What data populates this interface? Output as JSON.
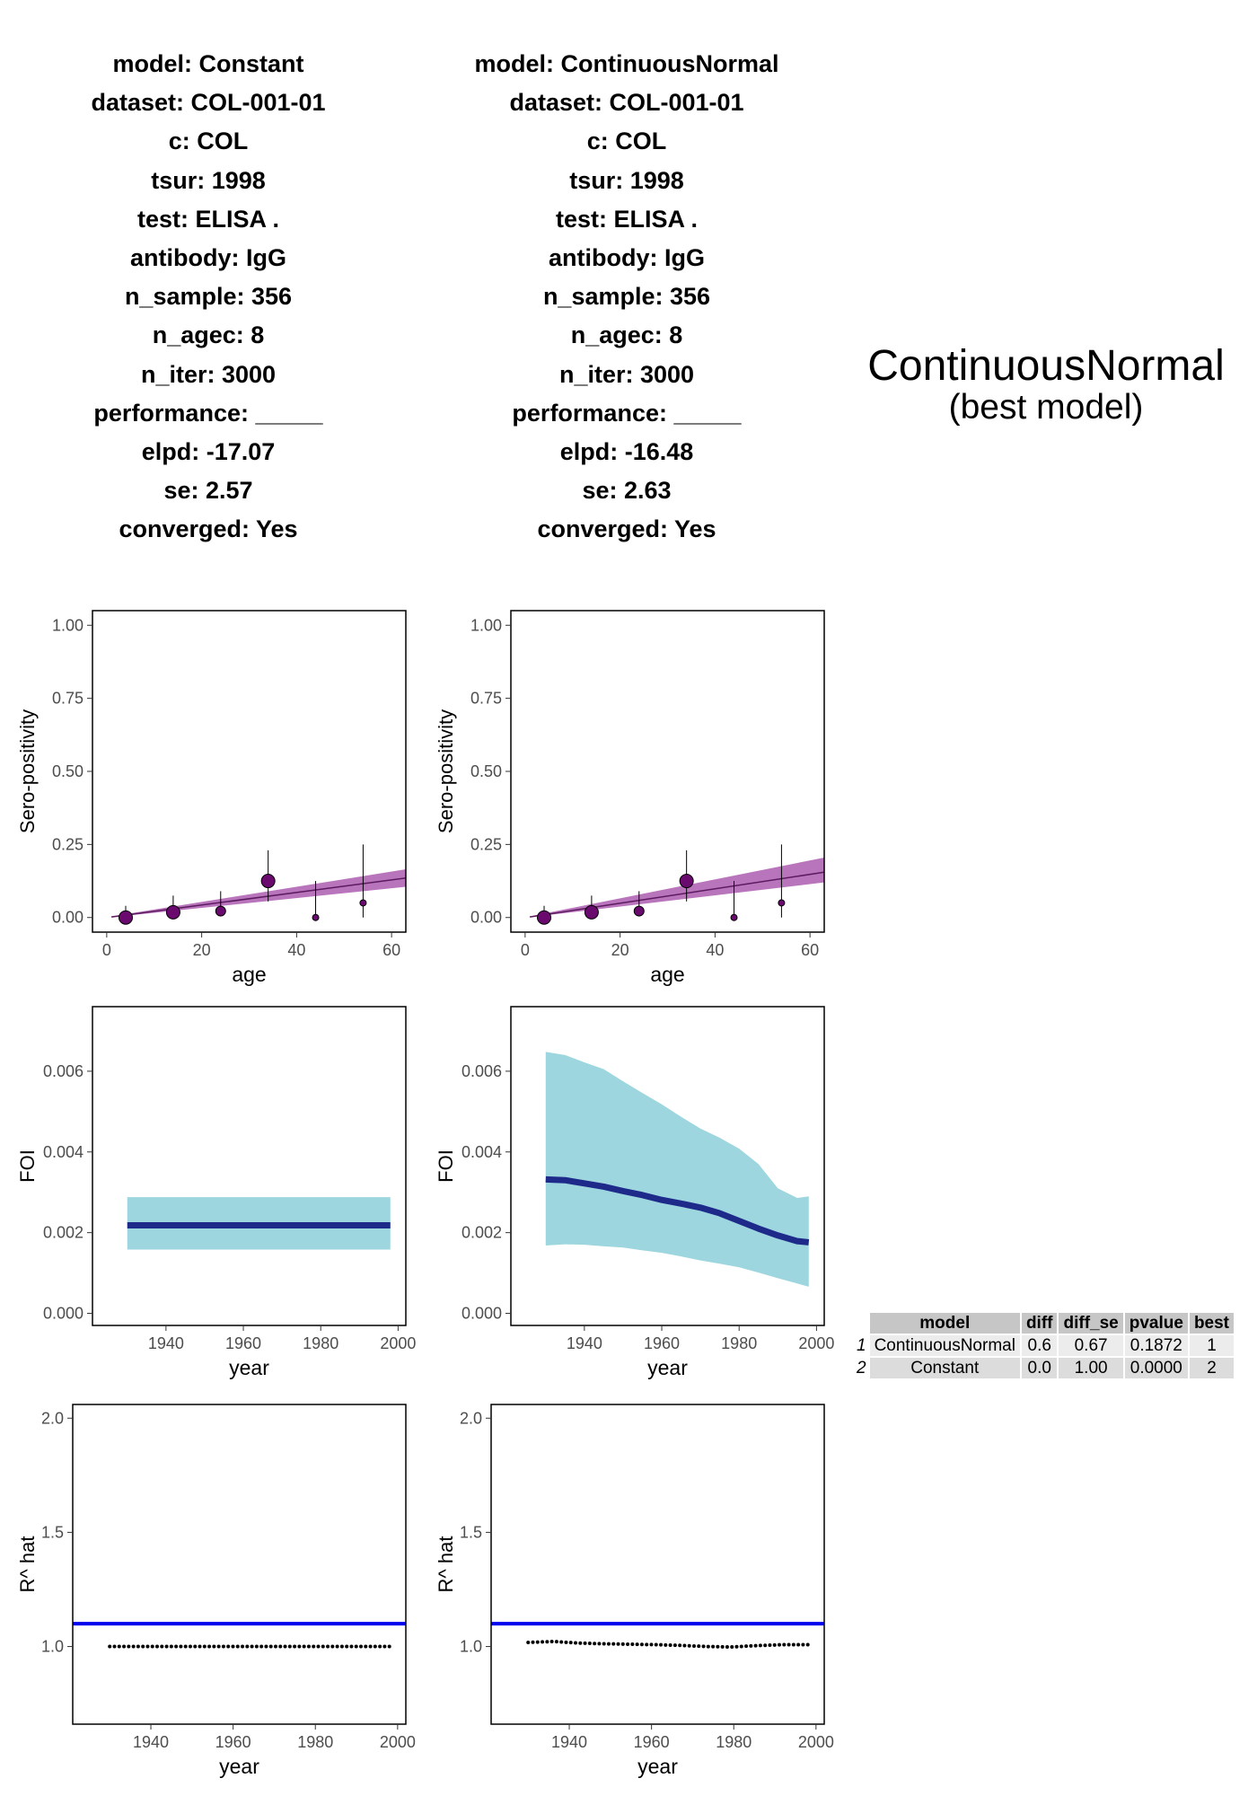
{
  "panels": [
    {
      "info": [
        "model: Constant",
        "dataset: COL-001-01",
        "c: COL",
        "tsur: 1998",
        "test: ELISA .",
        "antibody: IgG",
        "n_sample: 356",
        "n_agec: 8",
        "n_iter: 3000",
        "performance: _____",
        "elpd: -17.07",
        "se: 2.57",
        "converged: Yes"
      ]
    },
    {
      "info": [
        "model: ContinuousNormal",
        "dataset: COL-001-01",
        "c: COL",
        "tsur: 1998",
        "test: ELISA .",
        "antibody: IgG",
        "n_sample: 356",
        "n_agec: 8",
        "n_iter: 3000",
        "performance: _____",
        "elpd: -16.48",
        "se: 2.63",
        "converged: Yes"
      ]
    }
  ],
  "best_model": {
    "name": "ContinuousNormal",
    "label": "(best model)"
  },
  "colors": {
    "sero_band": "#ad5db0",
    "sero_line": "#5c1a5f",
    "sero_point": "#6a0a6e",
    "foi_band": "#9dd6de",
    "foi_line": "#1e2a8a",
    "rhat_ref": "#0000ee",
    "rhat_point": "#000000"
  },
  "comparison_table": {
    "headers": [
      "model",
      "diff",
      "diff_se",
      "pvalue",
      "best"
    ],
    "rows": [
      {
        "index": "1",
        "cells": [
          "ContinuousNormal",
          "0.6",
          "0.67",
          "0.1872",
          "1"
        ]
      },
      {
        "index": "2",
        "cells": [
          "Constant",
          "0.0",
          "1.00",
          "0.0000",
          "2"
        ]
      }
    ]
  },
  "chart_data": [
    {
      "type": "scatter",
      "model": "Constant",
      "xlabel": "age",
      "ylabel": "Sero-positivity",
      "xlim": [
        -3,
        63
      ],
      "ylim": [
        -0.05,
        1.05
      ],
      "xticks": [
        "0",
        "20",
        "40",
        "60"
      ],
      "yticks": [
        "0.00",
        "0.25",
        "0.50",
        "0.75",
        "1.00"
      ],
      "points": [
        {
          "x": 4,
          "y": 0.0,
          "lo": 0.0,
          "hi": 0.04,
          "size": "large"
        },
        {
          "x": 14,
          "y": 0.018,
          "lo": 0.003,
          "hi": 0.075,
          "size": "large"
        },
        {
          "x": 24,
          "y": 0.022,
          "lo": 0.004,
          "hi": 0.09,
          "size": "medium"
        },
        {
          "x": 34,
          "y": 0.125,
          "lo": 0.055,
          "hi": 0.23,
          "size": "large"
        },
        {
          "x": 44,
          "y": 0.0,
          "lo": 0.0,
          "hi": 0.125,
          "size": "small"
        },
        {
          "x": 54,
          "y": 0.05,
          "lo": 0.0,
          "hi": 0.25,
          "size": "small"
        }
      ],
      "fit": {
        "x": [
          1,
          63
        ],
        "mid": [
          0.002,
          0.135
        ],
        "lo": [
          0.001,
          0.105
        ],
        "hi": [
          0.004,
          0.165
        ]
      }
    },
    {
      "type": "scatter",
      "model": "ContinuousNormal",
      "xlabel": "age",
      "ylabel": "Sero-positivity",
      "xlim": [
        -3,
        63
      ],
      "ylim": [
        -0.05,
        1.05
      ],
      "xticks": [
        "0",
        "20",
        "40",
        "60"
      ],
      "yticks": [
        "0.00",
        "0.25",
        "0.50",
        "0.75",
        "1.00"
      ],
      "points": [
        {
          "x": 4,
          "y": 0.0,
          "lo": 0.0,
          "hi": 0.04,
          "size": "large"
        },
        {
          "x": 14,
          "y": 0.018,
          "lo": 0.003,
          "hi": 0.075,
          "size": "large"
        },
        {
          "x": 24,
          "y": 0.022,
          "lo": 0.004,
          "hi": 0.09,
          "size": "medium"
        },
        {
          "x": 34,
          "y": 0.125,
          "lo": 0.055,
          "hi": 0.23,
          "size": "large"
        },
        {
          "x": 44,
          "y": 0.0,
          "lo": 0.0,
          "hi": 0.125,
          "size": "small"
        },
        {
          "x": 54,
          "y": 0.05,
          "lo": 0.0,
          "hi": 0.25,
          "size": "small"
        }
      ],
      "fit": {
        "x": [
          1,
          63
        ],
        "mid": [
          0.002,
          0.155
        ],
        "lo": [
          0.001,
          0.12
        ],
        "hi": [
          0.004,
          0.205
        ]
      }
    },
    {
      "type": "area",
      "model": "Constant",
      "xlabel": "year",
      "ylabel": "FOI",
      "xlim": [
        1921,
        2002
      ],
      "ylim": [
        -0.0003,
        0.0076
      ],
      "xticks": [
        "1940",
        "1960",
        "1980",
        "2000"
      ],
      "yticks": [
        "0.000",
        "0.002",
        "0.004",
        "0.006"
      ],
      "x": [
        1930,
        1998
      ],
      "mid": [
        0.00218,
        0.00218
      ],
      "lo": [
        0.00158,
        0.00158
      ],
      "hi": [
        0.00288,
        0.00288
      ]
    },
    {
      "type": "area",
      "model": "ContinuousNormal",
      "xlabel": "year",
      "ylabel": "FOI",
      "xlim": [
        1921,
        2002
      ],
      "ylim": [
        -0.0003,
        0.0076
      ],
      "xticks": [
        "1940",
        "1960",
        "1980",
        "2000"
      ],
      "yticks": [
        "0.000",
        "0.002",
        "0.004",
        "0.006"
      ],
      "x": [
        1930,
        1935,
        1940,
        1945,
        1950,
        1955,
        1960,
        1965,
        1970,
        1975,
        1980,
        1985,
        1990,
        1995,
        1998
      ],
      "mid": [
        0.00332,
        0.0033,
        0.00322,
        0.00314,
        0.00303,
        0.00293,
        0.00281,
        0.00272,
        0.00262,
        0.00248,
        0.00229,
        0.0021,
        0.00193,
        0.00179,
        0.00176
      ],
      "lo": [
        0.00168,
        0.00171,
        0.0017,
        0.00166,
        0.00163,
        0.00156,
        0.0015,
        0.00141,
        0.00131,
        0.00123,
        0.00114,
        0.00101,
        0.00087,
        0.00074,
        0.00066
      ],
      "hi": [
        0.00648,
        0.0064,
        0.00622,
        0.00605,
        0.00575,
        0.00546,
        0.00518,
        0.00487,
        0.00458,
        0.00435,
        0.00408,
        0.0037,
        0.0031,
        0.00286,
        0.0029
      ]
    },
    {
      "type": "scatter",
      "model": "Constant",
      "xlabel": "year",
      "ylabel": "R^ hat",
      "xlim": [
        1921,
        2002
      ],
      "ylim": [
        0.66,
        2.06
      ],
      "xticks": [
        "1940",
        "1960",
        "1980",
        "2000"
      ],
      "yticks": [
        "1.0",
        "1.5",
        "2.0"
      ],
      "ref_line": 1.1,
      "x_range": [
        1930,
        1998
      ],
      "rhat": [
        1.0,
        1.0,
        1.0,
        1.0,
        1.0
      ]
    },
    {
      "type": "scatter",
      "model": "ContinuousNormal",
      "xlabel": "year",
      "ylabel": "R^ hat",
      "xlim": [
        1921,
        2002
      ],
      "ylim": [
        0.66,
        2.06
      ],
      "xticks": [
        "1940",
        "1960",
        "1980",
        "2000"
      ],
      "yticks": [
        "1.0",
        "1.5",
        "2.0"
      ],
      "ref_line": 1.1,
      "x_range": [
        1930,
        1998
      ],
      "rhat": [
        1.018,
        1.022,
        1.015,
        1.012,
        1.01,
        1.008,
        1.005,
        1.0,
        0.998,
        1.004,
        1.008,
        1.008
      ]
    }
  ]
}
